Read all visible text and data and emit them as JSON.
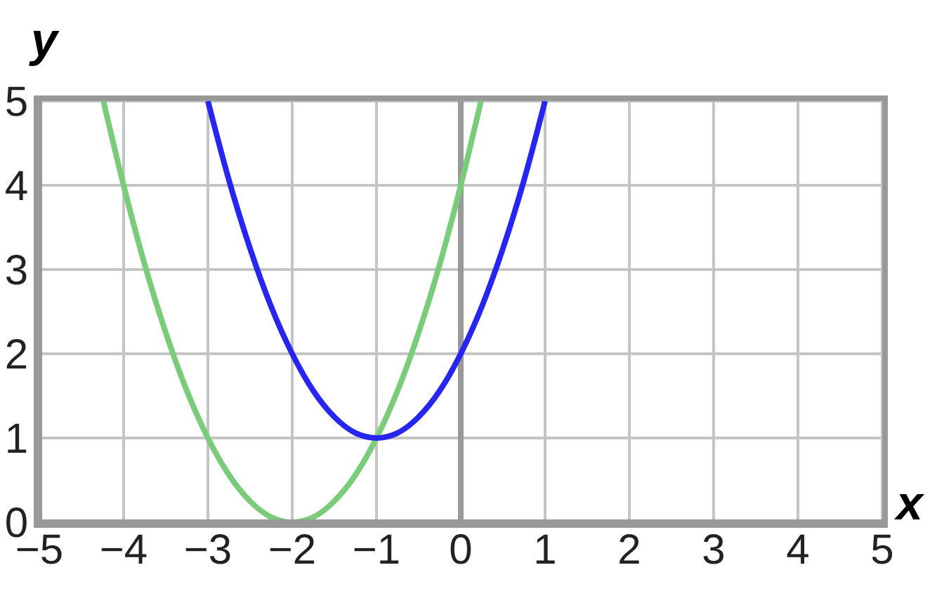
{
  "chart_data": {
    "type": "line",
    "xlabel": "x",
    "ylabel": "y",
    "xlim": [
      -5,
      5
    ],
    "ylim": [
      0,
      5
    ],
    "xticks": [
      -5,
      -4,
      -3,
      -2,
      -1,
      0,
      1,
      2,
      3,
      4,
      5
    ],
    "yticks": [
      0,
      1,
      2,
      3,
      4,
      5
    ],
    "grid": true,
    "ref_lines": [
      {
        "axis": "x",
        "value": 0,
        "color": "#999999"
      }
    ],
    "series": [
      {
        "color": "#7acc7a",
        "x": [
          -4.24,
          -4,
          -3.75,
          -3.5,
          -3.25,
          -3,
          -2.75,
          -2.5,
          -2.25,
          -2,
          -1.75,
          -1.5,
          -1.25,
          -1,
          -0.75,
          -0.5,
          -0.25,
          0,
          0.24
        ],
        "values": [
          5,
          4,
          3.06,
          2.25,
          1.56,
          1,
          0.56,
          0.25,
          0.06,
          0,
          0.06,
          0.25,
          0.56,
          1,
          1.56,
          2.25,
          3.06,
          4,
          5
        ]
      },
      {
        "color": "#2626f0",
        "x": [
          -3,
          -2.75,
          -2.5,
          -2.25,
          -2,
          -1.75,
          -1.5,
          -1.25,
          -1,
          -0.75,
          -0.5,
          -0.25,
          0,
          0.25,
          0.5,
          0.75,
          1
        ],
        "values": [
          5,
          4.06,
          3.25,
          2.56,
          2,
          1.56,
          1.25,
          1.06,
          1,
          1.06,
          1.25,
          1.56,
          2,
          2.56,
          3.25,
          4.06,
          5
        ]
      }
    ]
  }
}
